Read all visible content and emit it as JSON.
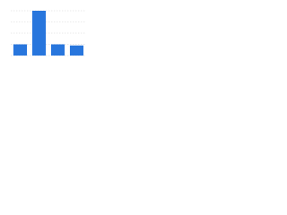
{
  "chart_data": {
    "type": "bar",
    "categories": [
      null,
      null,
      null,
      null
    ],
    "values": [
      1,
      4,
      1,
      0.9
    ],
    "color": "#2876dd",
    "ylim": [
      0,
      4
    ],
    "yticks": [
      0,
      1,
      2,
      3,
      4
    ],
    "grid": true
  }
}
